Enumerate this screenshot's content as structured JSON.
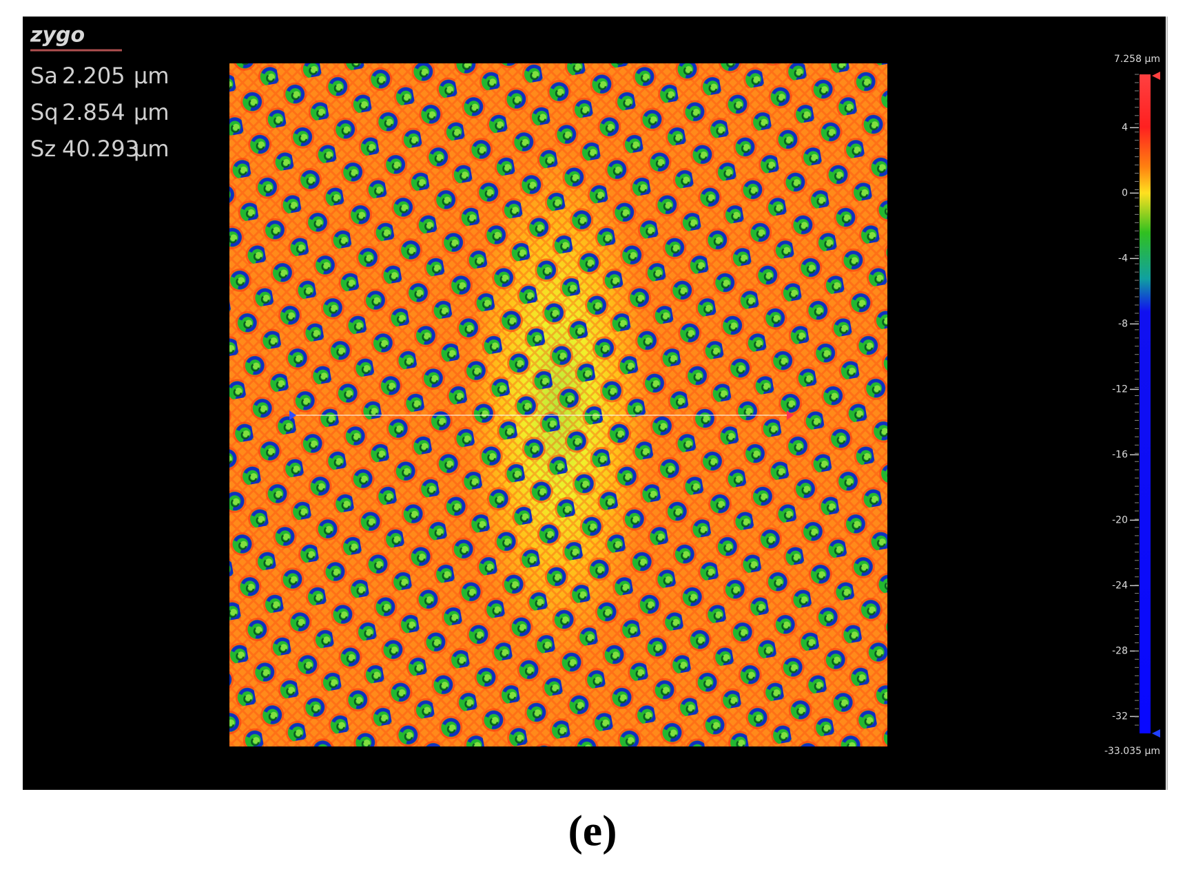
{
  "logo": "zygo",
  "stats": [
    {
      "label": "Sa",
      "value": 2.205,
      "unit": "µm"
    },
    {
      "label": "Sq",
      "value": 2.854,
      "unit": "µm"
    },
    {
      "label": "Sz",
      "value": 40.293,
      "unit": "µm"
    }
  ],
  "colorbar": {
    "lim": [
      7.258,
      -33.035
    ],
    "max_label": "7.258 µm",
    "min_label": "-33.035 µm",
    "ticks": [
      4,
      0,
      -4,
      -8,
      -12,
      -16,
      -20,
      -24,
      -28,
      -32
    ]
  },
  "caption": "(e)"
}
